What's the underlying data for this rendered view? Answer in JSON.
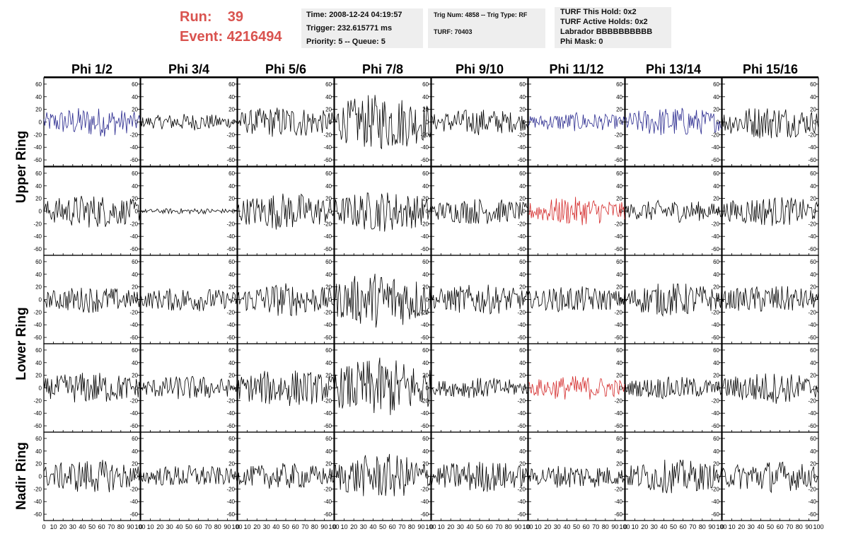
{
  "header": {
    "run_label": "Run:",
    "run_value": "39",
    "event_label": "Event:",
    "event_value": "4216494",
    "time_line": "Time: 2008-12-24 04:19:57",
    "trigger_line": "Trigger: 232.615771 ms",
    "priority_line": "Priority: 5 -- Queue: 5",
    "trig_line": "Trig Num: 4858 -- Trig Type: RF",
    "turf_line": "TURF: 70403",
    "turf_hold_line": "TURF This Hold: 0x2",
    "turf_active_line": "TURF Active Holds: 0x2",
    "labrador_line": "Labrador BBBBBBBBBB",
    "phimask_line": "Phi Mask: 0"
  },
  "colors": {
    "run_text": "#d9534f",
    "info_bg": "#eeeeee",
    "trace_default": "#000000",
    "trace_blue": "#2a2a8f",
    "trace_red": "#d42a2a"
  },
  "chart_data": {
    "type": "line",
    "columns": [
      "Phi 1/2",
      "Phi 3/4",
      "Phi 5/6",
      "Phi 7/8",
      "Phi 9/10",
      "Phi 11/12",
      "Phi 13/14",
      "Phi 15/16"
    ],
    "rows": [
      "Upper Ring",
      "Lower Ring",
      "Nadir Ring"
    ],
    "xlim": [
      0,
      100
    ],
    "ylim": [
      -70,
      70
    ],
    "y_ticks": [
      -60,
      -40,
      -20,
      0,
      20,
      40,
      60
    ],
    "x_ticks": [
      0,
      10,
      20,
      30,
      40,
      50,
      60,
      70,
      80,
      90,
      100
    ],
    "x_tick_labels": [
      "0",
      "10",
      "20",
      "30",
      "40",
      "50",
      "60",
      "70",
      "80",
      "90",
      "100"
    ],
    "panels": [
      [
        {
          "amp": 16,
          "color": "blue"
        },
        {
          "amp": 9,
          "color": "black"
        },
        {
          "amp": 17,
          "color": "black"
        },
        {
          "amp": 30,
          "color": "black"
        },
        {
          "amp": 14,
          "color": "black"
        },
        {
          "amp": 10,
          "color": "blue"
        },
        {
          "amp": 16,
          "color": "blue"
        },
        {
          "amp": 18,
          "color": "black"
        }
      ],
      [
        {
          "amp": 18,
          "color": "black"
        },
        {
          "amp": 3,
          "color": "black"
        },
        {
          "amp": 20,
          "color": "black"
        },
        {
          "amp": 22,
          "color": "black"
        },
        {
          "amp": 14,
          "color": "black"
        },
        {
          "amp": 15,
          "color": "red"
        },
        {
          "amp": 12,
          "color": "black"
        },
        {
          "amp": 16,
          "color": "black"
        }
      ],
      [
        {
          "amp": 14,
          "color": "black"
        },
        {
          "amp": 13,
          "color": "black"
        },
        {
          "amp": 18,
          "color": "black"
        },
        {
          "amp": 30,
          "color": "black"
        },
        {
          "amp": 16,
          "color": "black"
        },
        {
          "amp": 14,
          "color": "black"
        },
        {
          "amp": 18,
          "color": "black"
        },
        {
          "amp": 15,
          "color": "black"
        }
      ],
      [
        {
          "amp": 17,
          "color": "black"
        },
        {
          "amp": 13,
          "color": "black"
        },
        {
          "amp": 20,
          "color": "black"
        },
        {
          "amp": 32,
          "color": "black"
        },
        {
          "amp": 11,
          "color": "black"
        },
        {
          "amp": 13,
          "color": "red"
        },
        {
          "amp": 12,
          "color": "black"
        },
        {
          "amp": 17,
          "color": "black"
        }
      ],
      [
        {
          "amp": 18,
          "color": "black"
        },
        {
          "amp": 12,
          "color": "black"
        },
        {
          "amp": 14,
          "color": "black"
        },
        {
          "amp": 24,
          "color": "black"
        },
        {
          "amp": 17,
          "color": "black"
        },
        {
          "amp": 13,
          "color": "black"
        },
        {
          "amp": 18,
          "color": "black"
        },
        {
          "amp": 17,
          "color": "black"
        }
      ]
    ],
    "samples_per_trace": 100
  }
}
